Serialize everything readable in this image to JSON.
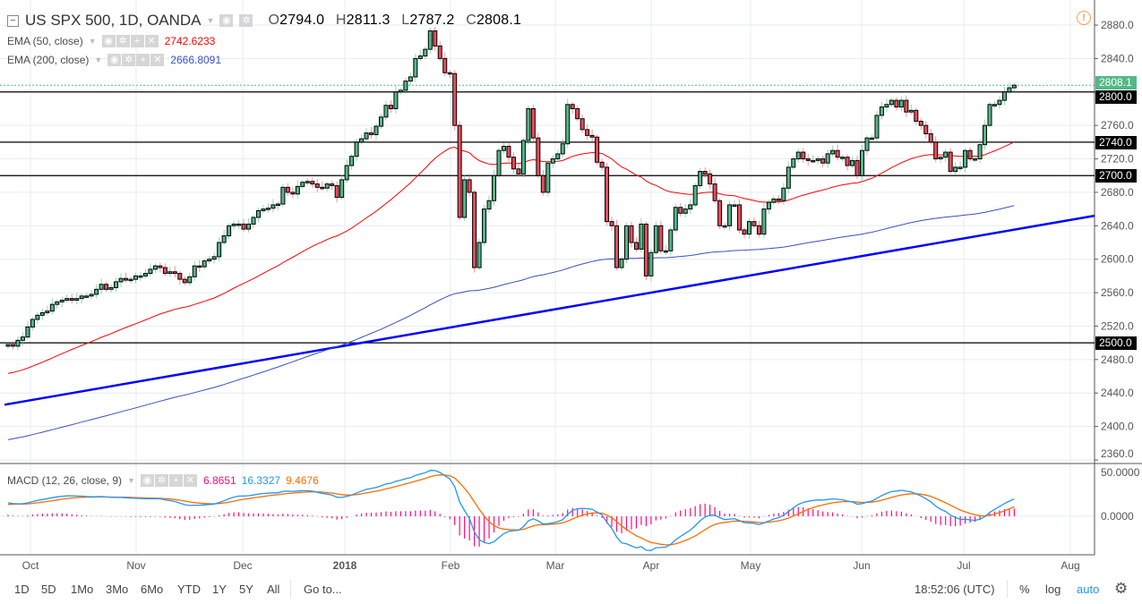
{
  "header": {
    "symbol_title": "US SPX 500, 1D, OANDA",
    "open_label": "O",
    "open": "2794.0",
    "high_label": "H",
    "high": "2811.3",
    "low_label": "L",
    "low": "2787.2",
    "close_label": "C",
    "close": "2808.1",
    "alert_icon": "exclamation-circle-icon"
  },
  "indicators": [
    {
      "label": "EMA (50, close)",
      "value": "2742.6233",
      "color": "#ff0000"
    },
    {
      "label": "EMA (200, close)",
      "value": "2666.8091",
      "color": "#3a4fbf"
    }
  ],
  "macd": {
    "label": "MACD (12, 26, close, 9)",
    "histogram": "6.8651",
    "macd": "16.3327",
    "signal": "9.4676",
    "colors": {
      "histogram": "#ff0a7a",
      "macd": "#2196f3",
      "signal": "#ff6d00"
    },
    "axis_ticks": [
      "50.0000",
      "0.0000"
    ]
  },
  "chart_data": {
    "type": "candlestick",
    "title": "US SPX 500, 1D, OANDA",
    "y_ticks": [
      "2880.0",
      "2840.0",
      "2800.0",
      "2760.0",
      "2720.0",
      "2680.0",
      "2640.0",
      "2600.0",
      "2560.0",
      "2520.0",
      "2480.0",
      "2440.0",
      "2400.0",
      "2360.0"
    ],
    "ylim": [
      2360,
      2880
    ],
    "x_ticks": [
      "Oct",
      "Nov",
      "Dec",
      "2018",
      "Feb",
      "Mar",
      "Apr",
      "May",
      "Jun",
      "Jul",
      "Aug"
    ],
    "grid": true,
    "up_color": "#53b987",
    "down_color": "#eb4d5c",
    "close": [
      2498,
      2496,
      2503,
      2507,
      2519,
      2528,
      2533,
      2536,
      2538,
      2546,
      2549,
      2551,
      2553,
      2551,
      2553,
      2556,
      2556,
      2558,
      2564,
      2570,
      2564,
      2566,
      2573,
      2577,
      2575,
      2576,
      2580,
      2580,
      2583,
      2588,
      2592,
      2590,
      2583,
      2585,
      2583,
      2576,
      2572,
      2579,
      2592,
      2591,
      2598,
      2600,
      2603,
      2620,
      2628,
      2640,
      2642,
      2642,
      2636,
      2642,
      2650,
      2658,
      2660,
      2661,
      2665,
      2666,
      2686,
      2680,
      2678,
      2687,
      2692,
      2693,
      2690,
      2686,
      2685,
      2690,
      2688,
      2674,
      2695,
      2712,
      2723,
      2740,
      2744,
      2751,
      2749,
      2759,
      2770,
      2784,
      2780,
      2800,
      2802,
      2813,
      2818,
      2840,
      2843,
      2851,
      2873,
      2855,
      2840,
      2823,
      2822,
      2760,
      2650,
      2695,
      2680,
      2590,
      2620,
      2660,
      2670,
      2700,
      2730,
      2735,
      2722,
      2708,
      2702,
      2742,
      2780,
      2745,
      2700,
      2680,
      2715,
      2720,
      2726,
      2738,
      2785,
      2780,
      2768,
      2755,
      2748,
      2746,
      2716,
      2710,
      2645,
      2640,
      2590,
      2600,
      2640,
      2620,
      2612,
      2642,
      2580,
      2608,
      2640,
      2610,
      2610,
      2635,
      2662,
      2655,
      2660,
      2665,
      2688,
      2705,
      2702,
      2690,
      2670,
      2640,
      2640,
      2665,
      2665,
      2635,
      2630,
      2645,
      2640,
      2630,
      2660,
      2668,
      2672,
      2670,
      2685,
      2710,
      2720,
      2728,
      2720,
      2718,
      2718,
      2720,
      2715,
      2726,
      2730,
      2722,
      2722,
      2712,
      2718,
      2700,
      2730,
      2745,
      2745,
      2772,
      2782,
      2785,
      2790,
      2782,
      2790,
      2776,
      2778,
      2765,
      2760,
      2750,
      2740,
      2720,
      2722,
      2728,
      2705,
      2710,
      2710,
      2730,
      2720,
      2720,
      2737,
      2760,
      2785,
      2785,
      2790,
      2800,
      2805,
      2808.1
    ],
    "horizontal_levels": [
      {
        "price": 2800,
        "label": "2800.0"
      },
      {
        "price": 2740,
        "label": "2740.0"
      },
      {
        "price": 2700,
        "label": "2700.0"
      },
      {
        "price": 2500,
        "label": "2500.0"
      }
    ],
    "last_price": {
      "price": 2808.1,
      "label": "2808.1",
      "color": "#53b987"
    },
    "trendline": {
      "from": 2426,
      "to": 2652,
      "color": "#0000ff"
    },
    "series": [
      {
        "name": "EMA (50, close)",
        "color": "#ff0000"
      },
      {
        "name": "EMA (200, close)",
        "color": "#3a4fbf"
      }
    ]
  },
  "bottom_bar": {
    "ranges": [
      "1D",
      "5D",
      "1Mo",
      "3Mo",
      "6Mo",
      "YTD",
      "1Y",
      "5Y",
      "All"
    ],
    "goto": "Go to...",
    "clock": "18:52:06 (UTC)",
    "percent": "%",
    "log": "log",
    "auto": "auto",
    "settings_icon": "gear-icon"
  }
}
